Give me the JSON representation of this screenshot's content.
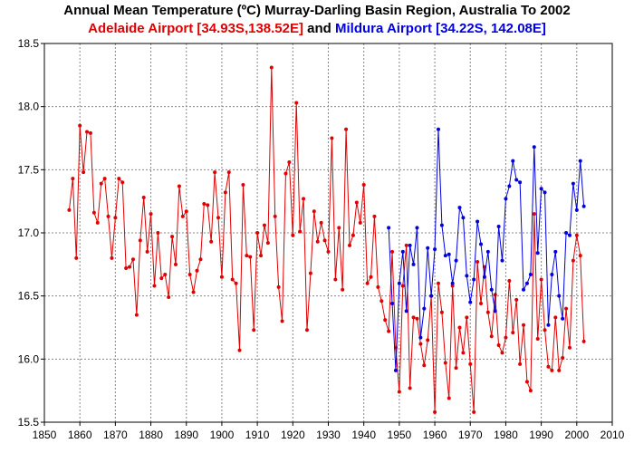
{
  "chart_data": {
    "type": "line",
    "title": "Annual Mean Temperature (ºC) Murray-Darling Basin Region, Australia To 2002",
    "subtitle": [
      {
        "text": "Adelaide Airport [34.93S,138.52E]",
        "color": "#e00000"
      },
      {
        "text": " and ",
        "color": "#000000"
      },
      {
        "text": "Mildura Airport [34.22S, 142.08E]",
        "color": "#0000e0"
      }
    ],
    "xlim": [
      1850,
      2010
    ],
    "ylim": [
      15.5,
      18.5
    ],
    "x_ticks": [
      1850,
      1860,
      1870,
      1880,
      1890,
      1900,
      1910,
      1920,
      1930,
      1940,
      1950,
      1960,
      1970,
      1980,
      1990,
      2000,
      2010
    ],
    "y_ticks": [
      15.5,
      16.0,
      16.5,
      17.0,
      17.5,
      18.0,
      18.5
    ],
    "y_tick_labels": [
      "15.5",
      "16.0",
      "16.5",
      "17.0",
      "17.5",
      "18.0",
      "18.5"
    ],
    "grid": true,
    "series": [
      {
        "name": "Adelaide Airport [34.93S,138.52E]",
        "color": "#e00000",
        "x": [
          1857,
          1858,
          1859,
          1860,
          1861,
          1862,
          1863,
          1864,
          1865,
          1866,
          1867,
          1868,
          1869,
          1870,
          1871,
          1872,
          1873,
          1874,
          1875,
          1876,
          1877,
          1878,
          1879,
          1880,
          1881,
          1882,
          1883,
          1884,
          1885,
          1886,
          1887,
          1888,
          1889,
          1890,
          1891,
          1892,
          1893,
          1894,
          1895,
          1896,
          1897,
          1898,
          1899,
          1900,
          1901,
          1902,
          1903,
          1904,
          1905,
          1906,
          1907,
          1908,
          1909,
          1910,
          1911,
          1912,
          1913,
          1914,
          1915,
          1916,
          1917,
          1918,
          1919,
          1920,
          1921,
          1922,
          1923,
          1924,
          1925,
          1926,
          1927,
          1928,
          1929,
          1930,
          1931,
          1932,
          1933,
          1934,
          1935,
          1936,
          1937,
          1938,
          1939,
          1940,
          1941,
          1942,
          1943,
          1944,
          1945,
          1946,
          1947,
          1948,
          1949,
          1950,
          1951,
          1952,
          1953,
          1954,
          1955,
          1956,
          1957,
          1958,
          1959,
          1960,
          1961,
          1962,
          1963,
          1964,
          1965,
          1966,
          1967,
          1968,
          1969,
          1970,
          1971,
          1972,
          1973,
          1974,
          1975,
          1976,
          1977,
          1978,
          1979,
          1980,
          1981,
          1982,
          1983,
          1984,
          1985,
          1986,
          1987,
          1988,
          1989,
          1990,
          1991,
          1992,
          1993,
          1994,
          1995,
          1996,
          1997,
          1998,
          1999,
          2000,
          2001,
          2002
        ],
        "y": [
          17.18,
          17.43,
          16.8,
          17.85,
          17.48,
          17.8,
          17.79,
          17.16,
          17.08,
          17.39,
          17.43,
          17.13,
          16.8,
          17.12,
          17.43,
          17.4,
          16.72,
          16.73,
          16.79,
          16.35,
          16.94,
          17.28,
          16.85,
          17.15,
          16.58,
          17.0,
          16.64,
          16.67,
          16.49,
          16.97,
          16.75,
          17.37,
          17.13,
          17.17,
          16.67,
          16.53,
          16.7,
          16.79,
          17.23,
          17.22,
          16.93,
          17.48,
          17.12,
          16.65,
          17.32,
          17.48,
          16.63,
          16.6,
          16.07,
          17.38,
          16.82,
          16.81,
          16.23,
          17.0,
          16.82,
          17.06,
          16.92,
          18.31,
          17.13,
          16.57,
          16.3,
          17.47,
          17.56,
          16.98,
          18.03,
          17.01,
          17.27,
          16.23,
          16.68,
          17.17,
          16.93,
          17.08,
          16.94,
          16.85,
          17.75,
          16.63,
          17.04,
          16.55,
          17.82,
          16.9,
          16.98,
          17.24,
          17.08,
          17.38,
          16.6,
          16.65,
          17.13,
          16.57,
          16.46,
          16.31,
          16.22,
          16.85,
          16.09,
          15.74,
          16.58,
          16.9,
          15.77,
          16.33,
          16.32,
          16.12,
          15.95,
          16.15,
          16.5,
          15.58,
          16.6,
          16.37,
          15.97,
          15.69,
          16.58,
          15.93,
          16.25,
          16.05,
          16.33,
          15.96,
          15.58,
          16.77,
          16.44,
          16.73,
          16.37,
          16.18,
          16.51,
          16.11,
          16.05,
          16.17,
          16.62,
          16.21,
          16.47,
          15.96,
          16.27,
          15.82,
          15.75,
          17.15,
          16.16,
          16.63,
          16.23,
          15.94,
          15.91,
          16.33,
          15.91,
          16.01,
          16.4,
          16.09,
          16.78,
          16.98,
          16.82,
          16.14
        ]
      },
      {
        "name": "Mildura Airport [34.22S, 142.08E]",
        "color": "#0000e0",
        "x": [
          1947,
          1948,
          1949,
          1950,
          1951,
          1952,
          1953,
          1954,
          1955,
          1956,
          1957,
          1958,
          1959,
          1960,
          1961,
          1962,
          1963,
          1964,
          1965,
          1966,
          1967,
          1968,
          1969,
          1970,
          1971,
          1972,
          1973,
          1974,
          1975,
          1976,
          1977,
          1978,
          1979,
          1980,
          1981,
          1982,
          1983,
          1984,
          1985,
          1986,
          1987,
          1988,
          1989,
          1990,
          1991,
          1992,
          1993,
          1994,
          1995,
          1996,
          1997,
          1998,
          1999,
          2000,
          2001,
          2002
        ],
        "y": [
          17.04,
          16.44,
          15.91,
          16.6,
          16.85,
          16.38,
          16.9,
          16.75,
          17.04,
          16.17,
          16.4,
          16.88,
          16.5,
          16.87,
          17.82,
          17.06,
          16.82,
          16.83,
          16.6,
          16.78,
          17.2,
          17.12,
          16.66,
          16.45,
          16.63,
          17.09,
          16.91,
          16.65,
          16.85,
          16.55,
          16.38,
          17.05,
          16.78,
          17.27,
          17.37,
          17.57,
          17.42,
          17.4,
          16.55,
          16.6,
          16.67,
          17.68,
          16.84,
          17.35,
          17.32,
          16.27,
          16.67,
          16.85,
          16.5,
          16.32,
          17.0,
          16.98,
          17.39,
          17.18,
          17.57,
          17.21
        ]
      }
    ]
  }
}
